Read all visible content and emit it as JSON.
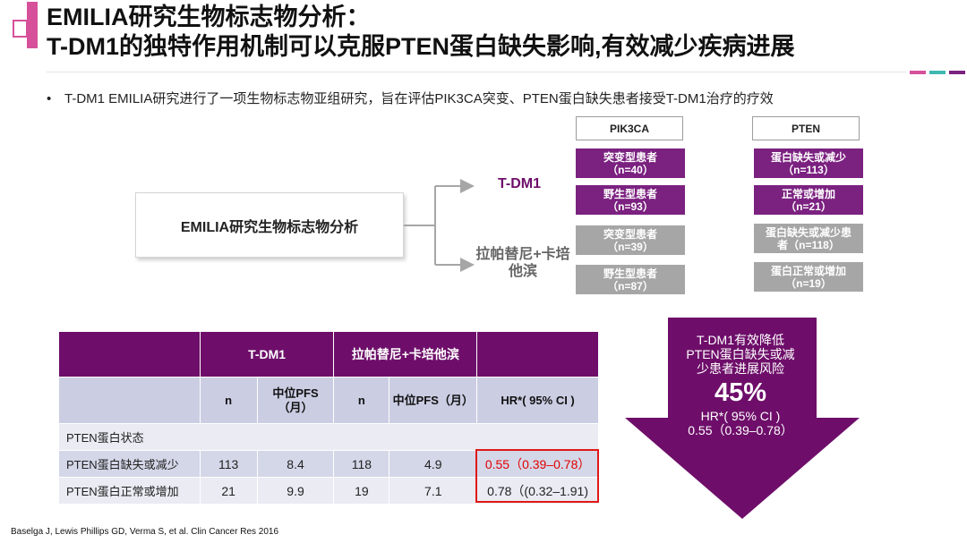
{
  "header": {
    "title_line1": "EMILIA研究生物标志物分析：",
    "title_line2": "T-DM1的独特作用机制可以克服PTEN蛋白缺失影响,有效减少疾病进展"
  },
  "bullet": "T-DM1 EMILIA研究进行了一项生物标志物亚组研究，旨在评估PIK3CA突变、PTEN蛋白缺失患者接受T-DM1治疗的疗效",
  "diagram": {
    "root_label": "EMILIA研究生物标志物分析",
    "branch_tdm1": "T-DM1",
    "branch_lap_line1": "拉帕替尼+卡培",
    "branch_lap_line2": "他滨",
    "pik3ca_header": "PIK3CA",
    "pten_header": "PTEN",
    "pik3ca": [
      {
        "label": "突变型患者",
        "n": "（n=40）"
      },
      {
        "label": "野生型患者",
        "n": "（n=93）"
      },
      {
        "label": "突变型患者",
        "n": "（n=39）"
      },
      {
        "label": "野生型患者",
        "n": "（n=87）"
      }
    ],
    "pten": [
      {
        "label": "蛋白缺失或减少",
        "n": "（n=113）"
      },
      {
        "label": "正常或增加",
        "n": "（n=21）"
      },
      {
        "label": "蛋白缺失或减少患",
        "n": "者（n=118）"
      },
      {
        "label": "蛋白正常或增加",
        "n": "（n=19）"
      }
    ]
  },
  "table": {
    "group_tdm1": "T-DM1",
    "group_lap": "拉帕替尼+卡培他滨",
    "col_n": "n",
    "col_pfs_line1": "中位PFS",
    "col_pfs_line2": "（月）",
    "col_pfs2": "中位PFS（月）",
    "col_hr": "HR*( 95% CI )",
    "section": "PTEN蛋白状态",
    "rows": [
      {
        "label": "PTEN蛋白缺失或减少",
        "n1": "113",
        "pfs1": "8.4",
        "n2": "118",
        "pfs2": "4.9",
        "hr": "0.55（0.39–0.78）"
      },
      {
        "label": "PTEN蛋白正常或增加",
        "n1": "21",
        "pfs1": "9.9",
        "n2": "19",
        "pfs2": "7.1",
        "hr": "0.78（(0.32–1.91)"
      }
    ]
  },
  "callout": {
    "line1": "T-DM1有效降低",
    "line2": "PTEN蛋白缺失或减",
    "line3": "少患者进展风险",
    "percent": "45%",
    "hr_label": "HR*( 95% CI )",
    "hr_value": "0.55（0.39–0.78）"
  },
  "footnote": "Baselga J, Lewis Phillips GD, Verma S, et al. Clin Cancer Res 2016",
  "colors": {
    "accent_pink": "#d6519a",
    "purple": "#6e0e6a",
    "pill_purple": "#7b2180",
    "pill_gray": "#a6a6a6",
    "teal": "#3fb8b0",
    "highlight_red": "#e01818"
  }
}
